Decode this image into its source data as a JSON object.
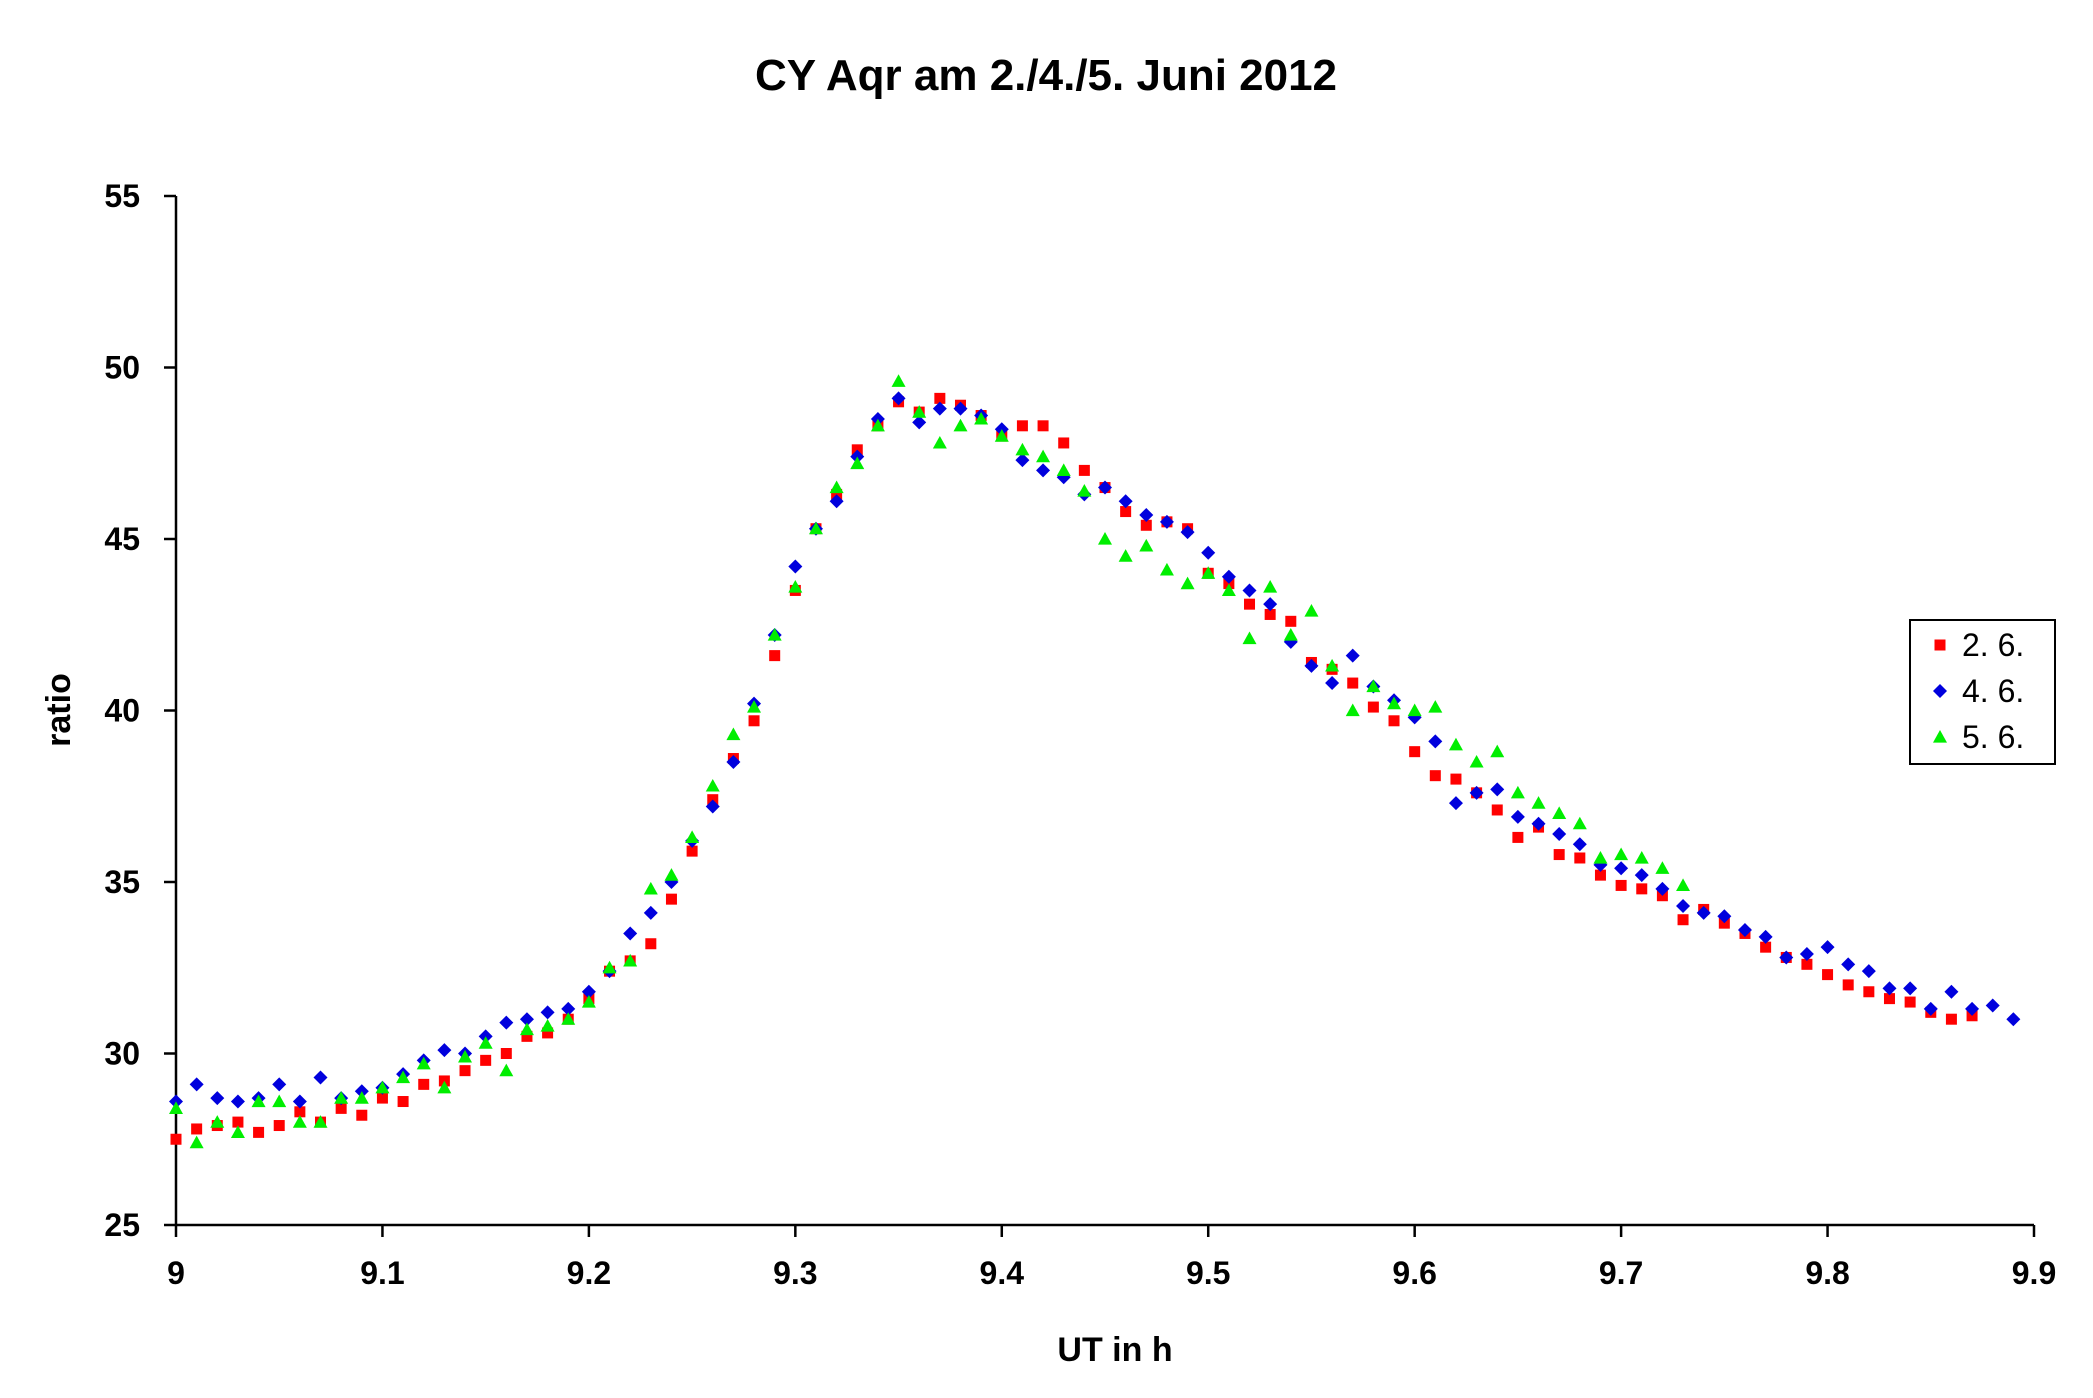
{
  "chart_data": {
    "type": "scatter",
    "title": "CY Aqr am 2./4./5. Juni 2012",
    "xlabel": "UT in h",
    "ylabel": "ratio",
    "xlim": [
      9,
      9.9
    ],
    "ylim": [
      25,
      55
    ],
    "xticks": [
      "9",
      "9.1",
      "9.2",
      "9.3",
      "9.4",
      "9.5",
      "9.6",
      "9.7",
      "9.8",
      "9.9"
    ],
    "yticks": [
      "25",
      "30",
      "35",
      "40",
      "45",
      "50",
      "55"
    ],
    "grid": false,
    "legend_position": "right",
    "series": [
      {
        "name": "2. 6.",
        "color": "#ff0000",
        "marker": "square",
        "x": [
          9.0,
          9.01,
          9.02,
          9.03,
          9.04,
          9.05,
          9.06,
          9.07,
          9.08,
          9.09,
          9.1,
          9.11,
          9.12,
          9.13,
          9.14,
          9.15,
          9.16,
          9.17,
          9.18,
          9.19,
          9.2,
          9.21,
          9.22,
          9.23,
          9.24,
          9.25,
          9.26,
          9.27,
          9.28,
          9.29,
          9.3,
          9.31,
          9.32,
          9.33,
          9.34,
          9.35,
          9.36,
          9.37,
          9.38,
          9.39,
          9.4,
          9.41,
          9.42,
          9.43,
          9.44,
          9.45,
          9.46,
          9.47,
          9.48,
          9.49,
          9.5,
          9.51,
          9.52,
          9.53,
          9.54,
          9.55,
          9.56,
          9.57,
          9.58,
          9.59,
          9.6,
          9.61,
          9.62,
          9.63,
          9.64,
          9.65,
          9.66,
          9.67,
          9.68,
          9.69,
          9.7,
          9.71,
          9.72,
          9.73,
          9.74,
          9.75,
          9.76,
          9.77,
          9.78,
          9.79,
          9.8,
          9.81,
          9.82,
          9.83,
          9.84,
          9.85,
          9.86,
          9.87
        ],
        "y": [
          27.5,
          27.8,
          27.9,
          28.0,
          27.7,
          27.9,
          28.3,
          28.0,
          28.4,
          28.2,
          28.7,
          28.6,
          29.1,
          29.2,
          29.5,
          29.8,
          30.0,
          30.5,
          30.6,
          31.0,
          31.6,
          32.4,
          32.7,
          33.2,
          34.5,
          35.9,
          37.4,
          38.6,
          39.7,
          41.6,
          43.5,
          45.3,
          46.3,
          47.6,
          48.3,
          49.0,
          48.7,
          49.1,
          48.9,
          48.6,
          48.0,
          48.3,
          48.3,
          47.8,
          47.0,
          46.5,
          45.8,
          45.4,
          45.5,
          45.3,
          44.0,
          43.7,
          43.1,
          42.8,
          42.6,
          41.4,
          41.2,
          40.8,
          40.1,
          39.7,
          38.8,
          38.1,
          38.0,
          37.6,
          37.1,
          36.3,
          36.6,
          35.8,
          35.7,
          35.2,
          34.9,
          34.8,
          34.6,
          33.9,
          34.2,
          33.8,
          33.5,
          33.1,
          32.8,
          32.6,
          32.3,
          32.0,
          31.8,
          31.6,
          31.5,
          31.2,
          31.0,
          31.1
        ]
      },
      {
        "name": "4. 6.",
        "color": "#0000dd",
        "marker": "diamond",
        "x": [
          9.0,
          9.01,
          9.02,
          9.03,
          9.04,
          9.05,
          9.06,
          9.07,
          9.08,
          9.09,
          9.1,
          9.11,
          9.12,
          9.13,
          9.14,
          9.15,
          9.16,
          9.17,
          9.18,
          9.19,
          9.2,
          9.21,
          9.22,
          9.23,
          9.24,
          9.25,
          9.26,
          9.27,
          9.28,
          9.29,
          9.3,
          9.31,
          9.32,
          9.33,
          9.34,
          9.35,
          9.36,
          9.37,
          9.38,
          9.39,
          9.4,
          9.41,
          9.42,
          9.43,
          9.44,
          9.45,
          9.46,
          9.47,
          9.48,
          9.49,
          9.5,
          9.51,
          9.52,
          9.53,
          9.54,
          9.55,
          9.56,
          9.57,
          9.58,
          9.59,
          9.6,
          9.61,
          9.62,
          9.63,
          9.64,
          9.65,
          9.66,
          9.67,
          9.68,
          9.69,
          9.7,
          9.71,
          9.72,
          9.73,
          9.74,
          9.75,
          9.76,
          9.77,
          9.78,
          9.79,
          9.8,
          9.81,
          9.82,
          9.83,
          9.84,
          9.85,
          9.86,
          9.87,
          9.88,
          9.89
        ],
        "y": [
          28.6,
          29.1,
          28.7,
          28.6,
          28.7,
          29.1,
          28.6,
          29.3,
          28.7,
          28.9,
          29.0,
          29.4,
          29.8,
          30.1,
          30.0,
          30.5,
          30.9,
          31.0,
          31.2,
          31.3,
          31.8,
          32.4,
          33.5,
          34.1,
          35.0,
          36.2,
          37.2,
          38.5,
          40.2,
          42.2,
          44.2,
          45.3,
          46.1,
          47.4,
          48.5,
          49.1,
          48.4,
          48.8,
          48.8,
          48.6,
          48.2,
          47.3,
          47.0,
          46.8,
          46.3,
          46.5,
          46.1,
          45.7,
          45.5,
          45.2,
          44.6,
          43.9,
          43.5,
          43.1,
          42.0,
          41.3,
          40.8,
          41.6,
          40.7,
          40.3,
          39.8,
          39.1,
          37.3,
          37.6,
          37.7,
          36.9,
          36.7,
          36.4,
          36.1,
          35.5,
          35.4,
          35.2,
          34.8,
          34.3,
          34.1,
          34.0,
          33.6,
          33.4,
          32.8,
          32.9,
          33.1,
          32.6,
          32.4,
          31.9,
          31.9,
          31.3,
          31.8,
          31.3,
          31.4,
          31.0
        ]
      },
      {
        "name": "5. 6.",
        "color": "#00ee00",
        "marker": "triangle",
        "x": [
          9.0,
          9.01,
          9.02,
          9.03,
          9.04,
          9.05,
          9.06,
          9.07,
          9.08,
          9.09,
          9.1,
          9.11,
          9.12,
          9.13,
          9.14,
          9.15,
          9.16,
          9.17,
          9.18,
          9.19,
          9.2,
          9.21,
          9.22,
          9.23,
          9.24,
          9.25,
          9.26,
          9.27,
          9.28,
          9.29,
          9.3,
          9.31,
          9.32,
          9.33,
          9.34,
          9.35,
          9.36,
          9.37,
          9.38,
          9.39,
          9.4,
          9.41,
          9.42,
          9.43,
          9.44,
          9.45,
          9.46,
          9.47,
          9.48,
          9.49,
          9.5,
          9.51,
          9.52,
          9.53,
          9.54,
          9.55,
          9.56,
          9.57,
          9.58,
          9.59,
          9.6,
          9.61,
          9.62,
          9.63,
          9.64,
          9.65,
          9.66,
          9.67,
          9.68,
          9.69,
          9.7,
          9.71,
          9.72,
          9.73
        ],
        "y": [
          28.4,
          27.4,
          28.0,
          27.7,
          28.6,
          28.6,
          28.0,
          28.0,
          28.7,
          28.7,
          29.0,
          29.3,
          29.7,
          29.0,
          29.9,
          30.3,
          29.5,
          30.7,
          30.8,
          31.0,
          31.5,
          32.5,
          32.7,
          34.8,
          35.2,
          36.3,
          37.8,
          39.3,
          40.1,
          42.2,
          43.6,
          45.3,
          46.5,
          47.2,
          48.3,
          49.6,
          48.7,
          47.8,
          48.3,
          48.5,
          48.0,
          47.6,
          47.4,
          47.0,
          46.4,
          45.0,
          44.5,
          44.8,
          44.1,
          43.7,
          44.0,
          43.5,
          42.1,
          43.6,
          42.2,
          42.9,
          41.3,
          40.0,
          40.7,
          40.2,
          40.0,
          40.1,
          39.0,
          38.5,
          38.8,
          37.6,
          37.3,
          37.0,
          36.7,
          35.7,
          35.8,
          35.7,
          35.4,
          34.9
        ]
      }
    ]
  }
}
